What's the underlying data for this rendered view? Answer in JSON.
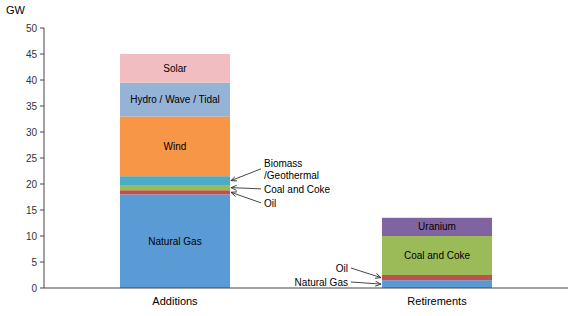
{
  "chart_data": {
    "type": "bar",
    "stacked": true,
    "ylabel": "GW",
    "categories": [
      "Additions",
      "Retirements"
    ],
    "series": [
      {
        "name": "Natural Gas",
        "color": "#5b9bd5",
        "values": [
          18.0,
          1.5
        ]
      },
      {
        "name": "Oil",
        "color": "#c0504d",
        "values": [
          0.8,
          1.0
        ]
      },
      {
        "name": "Coal and Coke",
        "color": "#9bbb59",
        "values": [
          1.0,
          7.5
        ]
      },
      {
        "name": "Biomass /Geothermal",
        "color": "#4bacc6",
        "values": [
          1.7,
          null
        ]
      },
      {
        "name": "Wind",
        "color": "#f79646",
        "values": [
          11.5,
          null
        ]
      },
      {
        "name": "Hydro / Wave / Tidal",
        "color": "#95b3d7",
        "values": [
          6.5,
          null
        ]
      },
      {
        "name": "Solar",
        "color": "#f2bdc0",
        "values": [
          5.5,
          null
        ]
      },
      {
        "name": "Uranium",
        "color": "#8064a2",
        "values": [
          null,
          3.5
        ]
      }
    ],
    "ylim": [
      0,
      50
    ],
    "yticks": [
      0,
      5,
      10,
      15,
      20,
      25,
      30,
      35,
      40,
      45,
      50
    ],
    "grid": false,
    "annotations": [
      {
        "text": "Biomass\n/Geothermal",
        "series": "Biomass /Geothermal",
        "category": "Additions"
      },
      {
        "text": "Coal and Coke",
        "series": "Coal and Coke",
        "category": "Additions"
      },
      {
        "text": "Oil",
        "series": "Oil",
        "category": "Additions"
      },
      {
        "text": "Oil",
        "series": "Oil",
        "category": "Retirements"
      },
      {
        "text": "Natural Gas",
        "series": "Natural Gas",
        "category": "Retirements"
      }
    ]
  }
}
